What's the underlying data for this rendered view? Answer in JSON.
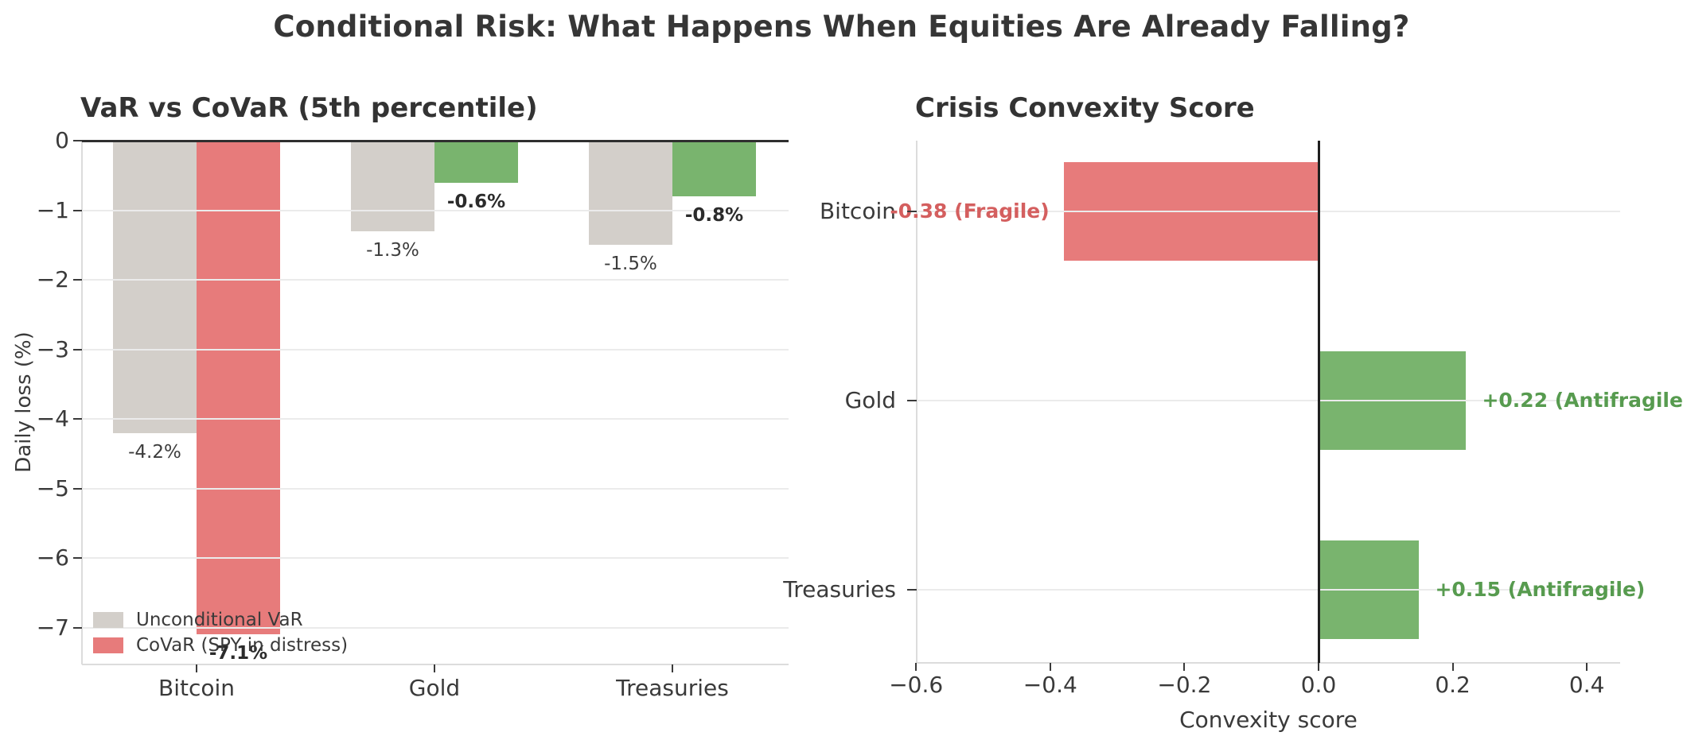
{
  "title": "Conditional Risk: What Happens When Equities Are Already Falling?",
  "colors": {
    "bar_gray": "#d3cfca",
    "bar_red": "#e77b7b",
    "bar_green": "#79b46e",
    "value_red": "#d45f5f",
    "value_green": "#579b4f",
    "grid": "#ebebeb",
    "axis_dark": "#2f2f2f"
  },
  "chart_data": [
    {
      "type": "bar",
      "title": "VaR vs CoVaR (5th percentile)",
      "ylabel": "Daily loss (%)",
      "categories": [
        "Bitcoin",
        "Gold",
        "Treasuries"
      ],
      "series": [
        {
          "name": "Unconditional VaR",
          "values": [
            -4.2,
            -1.3,
            -1.5
          ],
          "value_labels": [
            "-4.2%",
            "-1.3%",
            "-1.5%"
          ],
          "bar_colors": [
            "#d3cfca",
            "#d3cfca",
            "#d3cfca"
          ],
          "legend_color": "#d3cfca"
        },
        {
          "name": "CoVaR (SPY in distress)",
          "values": [
            -7.1,
            -0.6,
            -0.8
          ],
          "value_labels": [
            "-7.1%",
            "-0.6%",
            "-0.8%"
          ],
          "bar_colors": [
            "#e77b7b",
            "#79b46e",
            "#79b46e"
          ],
          "legend_color": "#e77b7b"
        }
      ],
      "yticks": [
        "0",
        "−1",
        "−2",
        "−3",
        "−4",
        "−5",
        "−6",
        "−7"
      ],
      "ylim": [
        -7.53,
        0
      ],
      "grid": true,
      "legend_position": "lower left"
    },
    {
      "type": "barh",
      "title": "Crisis Convexity Score",
      "xlabel": "Convexity score",
      "categories": [
        "Bitcoin",
        "Gold",
        "Treasuries"
      ],
      "values": [
        -0.38,
        0.22,
        0.15
      ],
      "value_labels": [
        "-0.38 (Fragile)",
        "+0.22 (Antifragile)",
        "+0.15 (Antifragile)"
      ],
      "bar_colors": [
        "#e77b7b",
        "#79b46e",
        "#79b46e"
      ],
      "label_colors": [
        "#d45f5f",
        "#579b4f",
        "#579b4f"
      ],
      "xticks": [
        "−0.6",
        "−0.4",
        "−0.2",
        "0.0",
        "0.2",
        "0.4"
      ],
      "xtick_values": [
        -0.6,
        -0.4,
        -0.2,
        0.0,
        0.2,
        0.4
      ],
      "xlim": [
        -0.6,
        0.45
      ],
      "grid": true
    }
  ]
}
